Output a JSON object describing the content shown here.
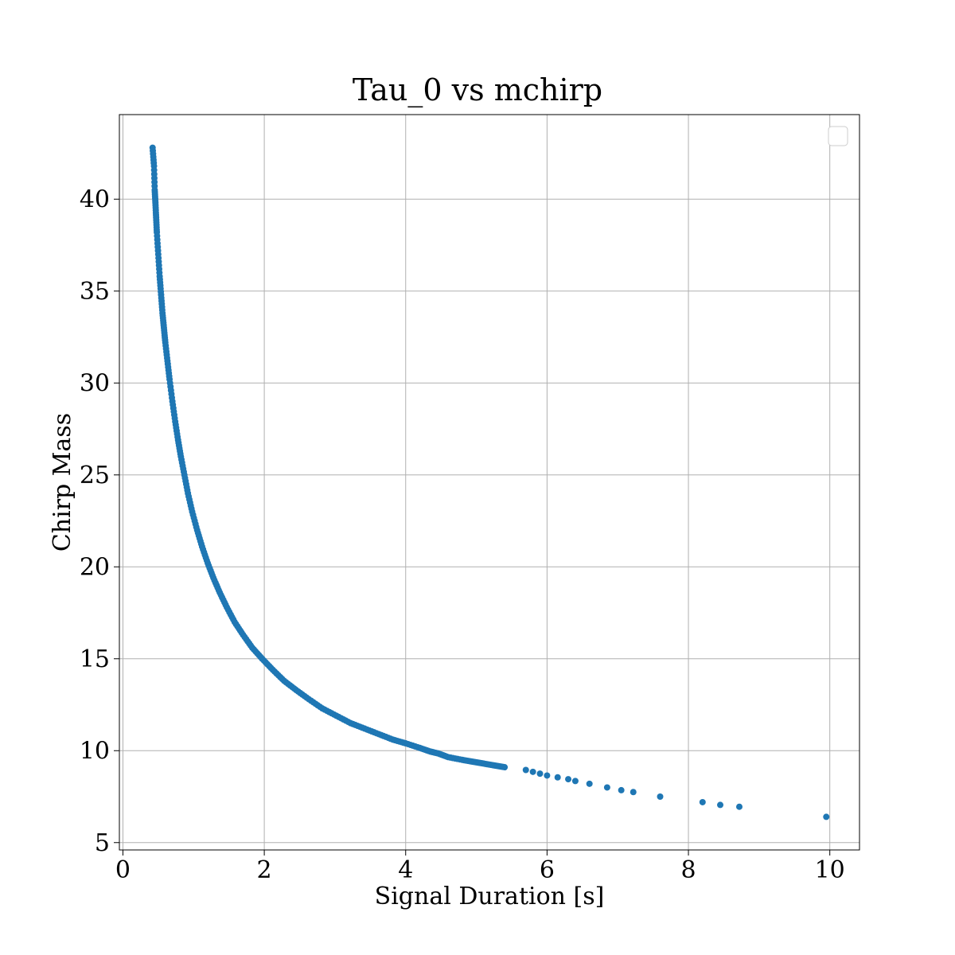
{
  "chart_data": {
    "type": "scatter",
    "title": "Tau_0 vs mchirp",
    "xlabel": "Signal Duration [s]",
    "ylabel": "Chirp Mass",
    "xlim": [
      -0.05,
      10.42
    ],
    "ylim": [
      4.6,
      44.6
    ],
    "xticks": [
      0,
      2,
      4,
      6,
      8,
      10
    ],
    "yticks": [
      5,
      10,
      15,
      20,
      25,
      30,
      35,
      40
    ],
    "grid": true,
    "legend": "upper right, empty",
    "color": "#1f77b4",
    "series": [
      {
        "x": [
          0.42,
          0.44,
          0.45,
          0.46,
          0.47,
          0.48,
          0.5,
          0.52,
          0.54,
          0.56,
          0.58,
          0.6,
          0.63,
          0.66,
          0.7,
          0.74,
          0.78,
          0.82,
          0.87,
          0.92,
          0.98,
          1.05,
          1.12,
          1.2,
          1.28,
          1.37,
          1.47,
          1.58,
          1.7,
          1.83,
          1.97,
          2.12,
          2.28,
          2.45,
          2.63,
          2.82,
          3.02,
          3.22,
          3.42,
          3.62,
          3.82,
          4.0,
          4.2,
          4.35,
          4.46,
          4.6,
          4.8,
          4.95,
          5.1,
          5.25,
          5.4,
          5.7,
          5.8,
          5.9,
          6.0,
          6.15,
          6.3,
          6.4,
          6.6,
          6.85,
          7.05,
          7.22,
          7.6,
          8.2,
          8.45,
          8.72,
          9.95
        ],
        "y": [
          42.8,
          41.8,
          40.5,
          39.8,
          39.0,
          38.2,
          37.0,
          35.8,
          34.8,
          33.8,
          33.0,
          32.2,
          31.2,
          30.2,
          29.0,
          27.9,
          26.9,
          26.0,
          25.0,
          24.0,
          23.0,
          22.0,
          21.1,
          20.2,
          19.4,
          18.6,
          17.8,
          17.0,
          16.3,
          15.6,
          15.0,
          14.4,
          13.8,
          13.3,
          12.8,
          12.3,
          11.9,
          11.5,
          11.2,
          10.9,
          10.6,
          10.4,
          10.15,
          9.95,
          9.85,
          9.65,
          9.5,
          9.4,
          9.3,
          9.2,
          9.1,
          8.95,
          8.85,
          8.75,
          8.65,
          8.55,
          8.45,
          8.35,
          8.2,
          8.0,
          7.85,
          7.75,
          7.5,
          7.2,
          7.05,
          6.95,
          6.4
        ]
      }
    ]
  }
}
